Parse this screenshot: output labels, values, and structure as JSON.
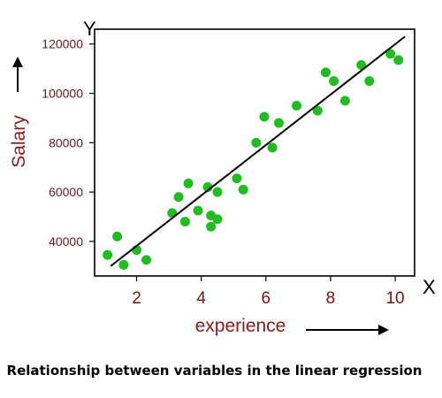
{
  "caption": "Relationship between variables in the linear regression",
  "chart_data": {
    "type": "scatter",
    "title": "",
    "xlabel": "experience",
    "ylabel": "Salary",
    "x_axis_letter": "X",
    "y_axis_letter": "Y",
    "xlim": [
      0.7,
      10.6
    ],
    "ylim": [
      26000,
      126000
    ],
    "x_ticks": [
      2,
      4,
      6,
      8,
      10
    ],
    "y_ticks": [
      40000,
      60000,
      80000,
      100000,
      120000
    ],
    "x_tick_labels": [
      "2",
      "4",
      "6",
      "8",
      "10"
    ],
    "y_tick_labels": [
      "40000",
      "60000",
      "80000",
      "100000",
      "120000"
    ],
    "grid": false,
    "legend": "none",
    "series": [
      {
        "points": [
          [
            1.1,
            34500
          ],
          [
            1.4,
            42000
          ],
          [
            1.6,
            30500
          ],
          [
            2.0,
            36500
          ],
          [
            2.3,
            32500
          ],
          [
            3.1,
            51500
          ],
          [
            3.3,
            58000
          ],
          [
            3.5,
            48000
          ],
          [
            3.6,
            63500
          ],
          [
            3.9,
            52500
          ],
          [
            4.2,
            62000
          ],
          [
            4.3,
            46000
          ],
          [
            4.3,
            50500
          ],
          [
            4.5,
            49000
          ],
          [
            4.5,
            60000
          ],
          [
            5.1,
            65500
          ],
          [
            5.3,
            61000
          ],
          [
            5.7,
            80000
          ],
          [
            5.95,
            90500
          ],
          [
            6.2,
            78000
          ],
          [
            6.4,
            88000
          ],
          [
            6.95,
            95000
          ],
          [
            7.6,
            93000
          ],
          [
            7.85,
            108500
          ],
          [
            8.1,
            105000
          ],
          [
            8.45,
            97000
          ],
          [
            8.95,
            111500
          ],
          [
            9.2,
            105000
          ],
          [
            9.85,
            116000
          ],
          [
            10.1,
            113500
          ]
        ]
      }
    ],
    "trendline": {
      "x": [
        1.2,
        10.3
      ],
      "y": [
        30000,
        123000
      ]
    },
    "colors": {
      "points": "#22bb22",
      "line": "#000000",
      "tick_labels": "#7a1515",
      "axis_title": "#8b1a1a",
      "axis": "#000000"
    }
  }
}
